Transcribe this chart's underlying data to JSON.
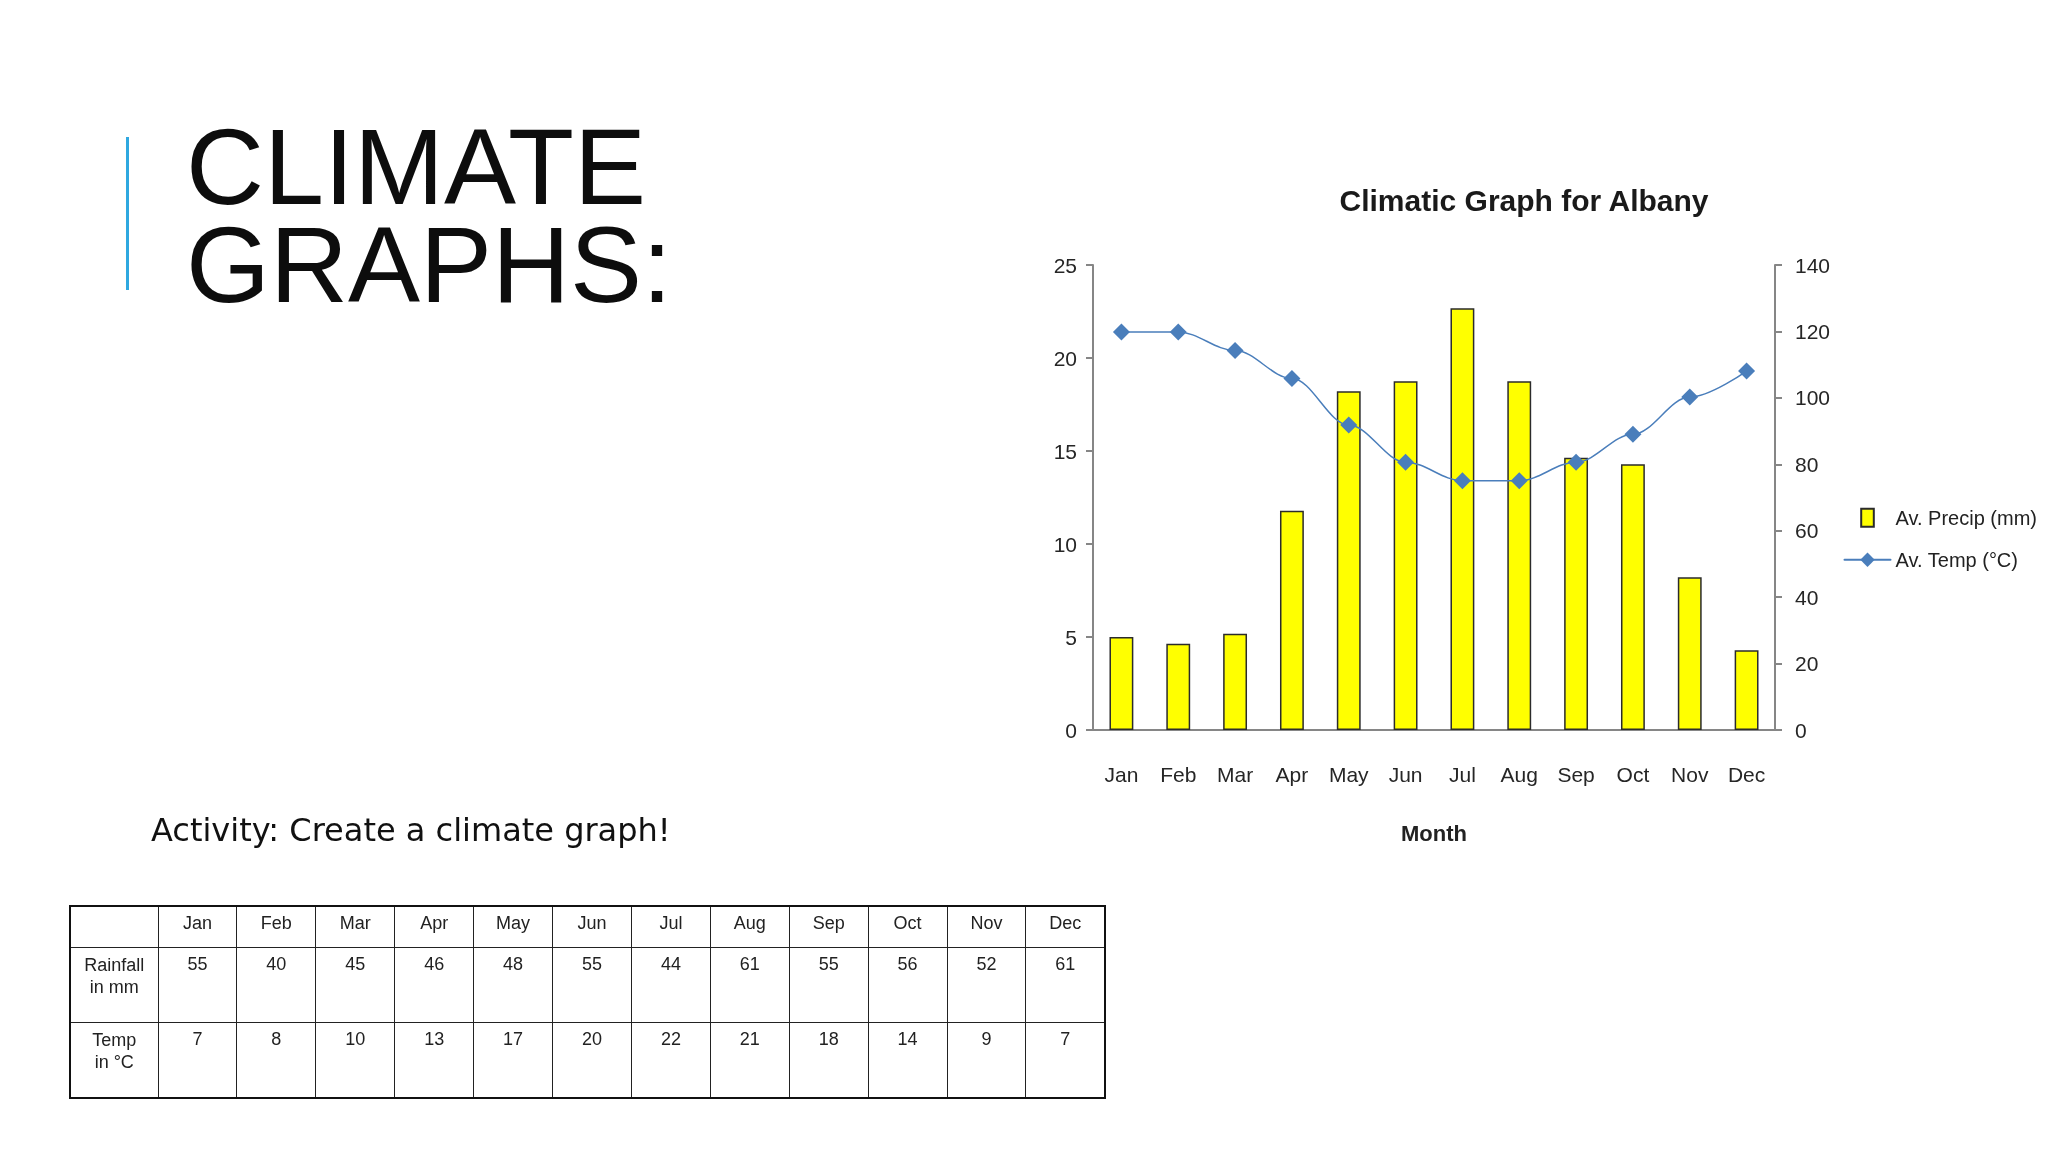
{
  "chart_data": [
    {
      "type": "other",
      "title": "CLIMATE GRAPHS:",
      "annotations": [
        "Activity: Create a climate graph!"
      ],
      "categories": [
        "Jan",
        "Feb",
        "Mar",
        "Apr",
        "May",
        "Jun",
        "Jul",
        "Aug",
        "Sep",
        "Oct",
        "Nov",
        "Dec"
      ],
      "series": [
        {
          "name": "Rainfall in mm",
          "values": [
            55,
            40,
            45,
            46,
            48,
            55,
            44,
            61,
            55,
            56,
            52,
            61
          ]
        },
        {
          "name": "Temp in °C",
          "values": [
            7,
            8,
            10,
            13,
            17,
            20,
            22,
            21,
            18,
            14,
            9,
            7
          ]
        }
      ],
      "data_labels": true
    },
    {
      "type": "bar",
      "title": "Climatic Graph for Albany",
      "xlabel": "Month",
      "categories": [
        "Jan",
        "Feb",
        "Mar",
        "Apr",
        "May",
        "Jun",
        "Jul",
        "Aug",
        "Sep",
        "Oct",
        "Nov",
        "Dec"
      ],
      "series": [
        {
          "name": "Av. Precip (mm)",
          "type": "bar",
          "axis": "y2",
          "color": "#ffff00",
          "values": [
            28,
            26,
            29,
            66,
            102,
            105,
            127,
            105,
            82,
            80,
            46,
            24
          ]
        },
        {
          "name": "Av. Temp (°C)",
          "type": "line",
          "color": "#4a7ebb",
          "values": [
            21.4,
            21.4,
            20.4,
            18.9,
            16.4,
            14.4,
            13.4,
            13.4,
            14.4,
            15.9,
            17.9,
            19.3
          ]
        }
      ],
      "ylim": [
        0,
        25
      ],
      "yticks": [
        0,
        5,
        10,
        15,
        20,
        25
      ],
      "y2lim": [
        0,
        140
      ],
      "y2ticks": [
        0,
        20,
        40,
        60,
        80,
        100,
        120,
        140
      ],
      "legend": "right",
      "marker": "diamond"
    }
  ]
}
